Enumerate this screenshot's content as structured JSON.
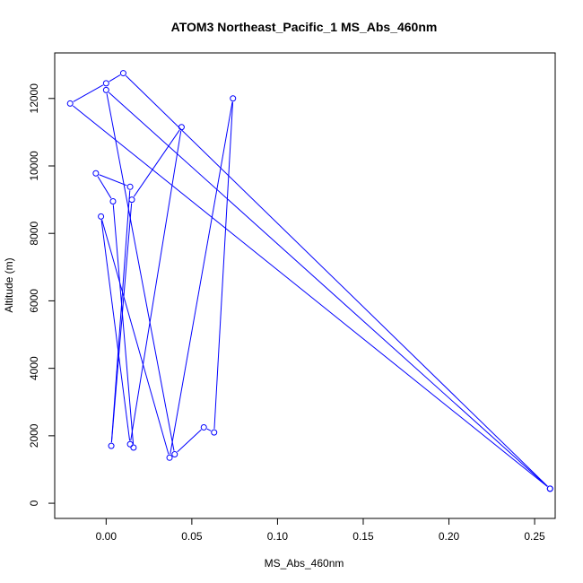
{
  "chart_data": {
    "type": "line",
    "title": "ATOM3 Northeast_Pacific_1 MS_Abs_460nm",
    "xlabel": "MS_Abs_460nm",
    "ylabel": "Altitude (m)",
    "xlim": [
      -0.03,
      0.262
    ],
    "ylim": [
      -450,
      13350
    ],
    "x_ticks": [
      0.0,
      0.05,
      0.1,
      0.15,
      0.2,
      0.25
    ],
    "x_tick_labels": [
      "0.00",
      "0.05",
      "0.10",
      "0.15",
      "0.20",
      "0.25"
    ],
    "y_ticks": [
      0,
      2000,
      4000,
      6000,
      8000,
      10000,
      12000
    ],
    "y_tick_labels": [
      "0",
      "2000",
      "4000",
      "6000",
      "8000",
      "10000",
      "12000"
    ],
    "grid": false,
    "series_color": "#0000ff",
    "series": [
      {
        "points": [
          {
            "x": 0.259,
            "y": 430
          },
          {
            "x": 0.01,
            "y": 12750
          },
          {
            "x": 0.0,
            "y": 12450
          },
          {
            "x": -0.021,
            "y": 11850
          },
          {
            "x": 0.259,
            "y": 430
          },
          {
            "x": 0.0,
            "y": 12250
          },
          {
            "x": 0.04,
            "y": 1450
          },
          {
            "x": 0.057,
            "y": 2250
          },
          {
            "x": 0.063,
            "y": 2100
          },
          {
            "x": 0.074,
            "y": 12000
          },
          {
            "x": 0.037,
            "y": 1350
          },
          {
            "x": -0.003,
            "y": 8500
          },
          {
            "x": 0.014,
            "y": 1750
          },
          {
            "x": 0.044,
            "y": 11150
          },
          {
            "x": 0.015,
            "y": 9000
          },
          {
            "x": 0.003,
            "y": 1700
          },
          {
            "x": 0.014,
            "y": 9380
          },
          {
            "x": -0.006,
            "y": 9780
          },
          {
            "x": 0.004,
            "y": 8950
          },
          {
            "x": 0.016,
            "y": 1650
          }
        ]
      }
    ]
  }
}
